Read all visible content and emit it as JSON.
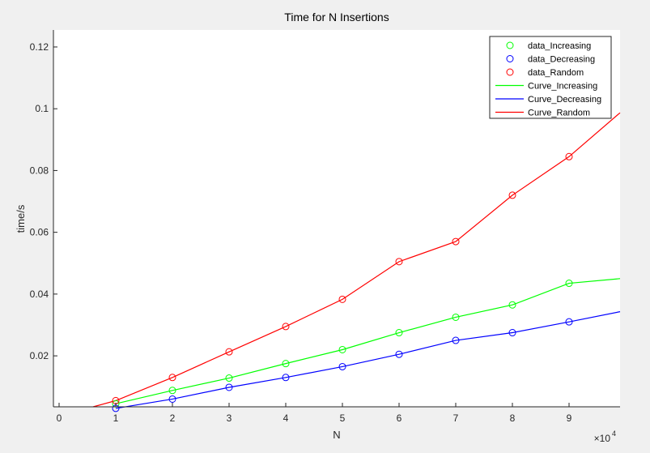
{
  "chart_data": {
    "type": "line",
    "title": "Time for N Insertions",
    "xlabel": "N",
    "ylabel": "time/s",
    "x_exponent_label": "×10",
    "x_exponent_power": "4",
    "xlim": [
      -0.1,
      9.9
    ],
    "ylim": [
      0.0035,
      0.1255
    ],
    "xticks": [
      0,
      1,
      2,
      3,
      4,
      5,
      6,
      7,
      8,
      9
    ],
    "xtick_labels": [
      "0",
      "1",
      "2",
      "3",
      "4",
      "5",
      "6",
      "7",
      "8",
      "9"
    ],
    "yticks": [
      0.02,
      0.04,
      0.06,
      0.08,
      0.1,
      0.12
    ],
    "ytick_labels": [
      "0.02",
      "0.04",
      "0.06",
      "0.08",
      "0.1",
      "0.12"
    ],
    "grid": false,
    "legend_position": "top-right",
    "x": [
      1,
      2,
      3,
      4,
      5,
      6,
      7,
      8,
      9
    ],
    "series": [
      {
        "name": "data_Increasing",
        "kind": "marker",
        "color": "#00ff00",
        "values": [
          0.0045,
          0.0088,
          0.0128,
          0.0175,
          0.022,
          0.0275,
          0.0325,
          0.0365,
          0.0435
        ]
      },
      {
        "name": "data_Decreasing",
        "kind": "marker",
        "color": "#0000ff",
        "values": [
          0.003,
          0.006,
          0.0098,
          0.013,
          0.0165,
          0.0205,
          0.025,
          0.0275,
          0.031
        ]
      },
      {
        "name": "data_Random",
        "kind": "marker",
        "color": "#ff0000",
        "values": [
          0.0055,
          0.013,
          0.0213,
          0.0295,
          0.0383,
          0.0505,
          0.057,
          0.072,
          0.0845
        ]
      },
      {
        "name": "Curve_Increasing",
        "kind": "line",
        "color": "#00ff00",
        "x": [
          1,
          2,
          3,
          4,
          5,
          6,
          7,
          8,
          9,
          9.9
        ],
        "values": [
          0.0045,
          0.0088,
          0.0128,
          0.0175,
          0.022,
          0.0275,
          0.0325,
          0.0365,
          0.0435,
          0.045
        ]
      },
      {
        "name": "Curve_Decreasing",
        "kind": "line",
        "color": "#0000ff",
        "x": [
          1,
          2,
          3,
          4,
          5,
          6,
          7,
          8,
          9,
          9.9
        ],
        "values": [
          0.003,
          0.006,
          0.0098,
          0.013,
          0.0165,
          0.0205,
          0.025,
          0.0275,
          0.031,
          0.0343
        ]
      },
      {
        "name": "Curve_Random",
        "kind": "line",
        "color": "#ff0000",
        "x": [
          0.6,
          1,
          2,
          3,
          4,
          5,
          6,
          7,
          8,
          9,
          9.9
        ],
        "values": [
          0.0035,
          0.0055,
          0.013,
          0.0213,
          0.0295,
          0.0383,
          0.0505,
          0.057,
          0.072,
          0.0845,
          0.0987
        ]
      }
    ]
  }
}
